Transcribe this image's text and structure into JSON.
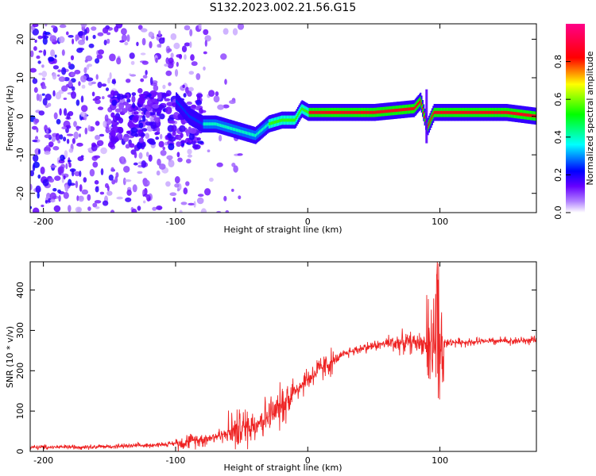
{
  "figure": {
    "title": "S132.2023.002.21.56.G15"
  },
  "chart_data": [
    {
      "type": "heatmap",
      "title": "S132.2023.002.21.56.G15",
      "xlabel": "Height of straight line (km)",
      "ylabel": "Frequency (Hz)",
      "xlim": [
        -210,
        173
      ],
      "ylim": [
        -25,
        24
      ],
      "xticks": [
        -200,
        -100,
        0,
        100
      ],
      "yticks": [
        -20,
        -10,
        0,
        10,
        20
      ],
      "colorbar": {
        "label": "Normalized spectral amplitude",
        "range": [
          0,
          1
        ],
        "ticks": [
          "0.0",
          "0.2",
          "0.4",
          "0.6",
          "0.8"
        ],
        "colormap": [
          "#ffffff",
          "#7700ff",
          "#0000ff",
          "#00ffff",
          "#00ff00",
          "#ffff00",
          "#ff0000",
          "#ff0080"
        ]
      },
      "ridge": {
        "x": [
          -100,
          -90,
          -80,
          -70,
          -60,
          -50,
          -40,
          -30,
          -20,
          -10,
          -5,
          0,
          50,
          80,
          85,
          90,
          95,
          100,
          150,
          173
        ],
        "y": [
          4,
          0,
          -2,
          -2,
          -3,
          -4,
          -5,
          -2,
          -1,
          -1,
          2,
          1,
          1,
          2,
          4,
          -3,
          1,
          1,
          1,
          0
        ]
      }
    },
    {
      "type": "line",
      "xlabel": "Height of straight line (km)",
      "ylabel": "SNR (10 * v/v)",
      "xlim": [
        -210,
        173
      ],
      "ylim": [
        0,
        470
      ],
      "xticks": [
        -200,
        -100,
        0,
        100
      ],
      "yticks": [
        0,
        100,
        200,
        300,
        400
      ],
      "line_color": "#ee2222",
      "trend": {
        "x": [
          -210,
          -150,
          -120,
          -100,
          -80,
          -60,
          -40,
          -25,
          -10,
          0,
          10,
          20,
          30,
          40,
          50,
          60,
          70,
          80,
          90,
          95,
          98,
          100,
          110,
          130,
          150,
          173
        ],
        "y": [
          10,
          12,
          15,
          20,
          30,
          45,
          70,
          95,
          150,
          180,
          205,
          225,
          245,
          255,
          262,
          268,
          270,
          270,
          268,
          265,
          265,
          268,
          270,
          272,
          274,
          275
        ]
      }
    }
  ]
}
